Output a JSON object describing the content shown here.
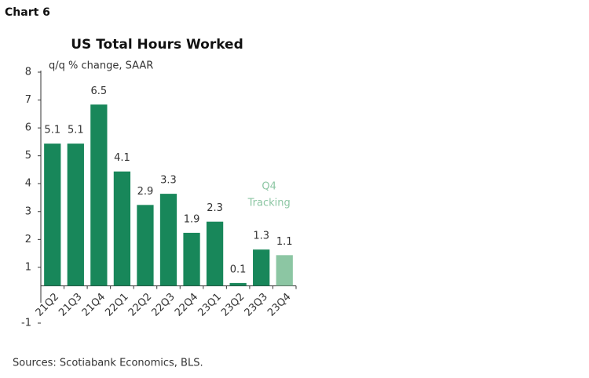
{
  "header": "Chart 6",
  "chart_data": {
    "type": "bar",
    "title": "US Total Hours Worked",
    "y_label": "q/q % change, SAAR",
    "categories": [
      "21Q2",
      "21Q3",
      "21Q4",
      "22Q1",
      "22Q2",
      "22Q3",
      "22Q4",
      "23Q1",
      "23Q2",
      "23Q3",
      "23Q4"
    ],
    "values": [
      5.1,
      5.1,
      6.5,
      4.1,
      2.9,
      3.3,
      1.9,
      2.3,
      0.1,
      1.3,
      1.1
    ],
    "colors": [
      "#18875a",
      "#18875a",
      "#18875a",
      "#18875a",
      "#18875a",
      "#18875a",
      "#18875a",
      "#18875a",
      "#18875a",
      "#18875a",
      "#8cc6a3"
    ],
    "annotation": {
      "lines": [
        "Q4",
        "Tracking"
      ],
      "color": "#8cc6a3"
    },
    "ylim": [
      -1,
      8
    ],
    "yticks": [
      8,
      7,
      6,
      5,
      4,
      3,
      2,
      1,
      -1
    ]
  },
  "source": "Sources: Scotiabank Economics, BLS."
}
